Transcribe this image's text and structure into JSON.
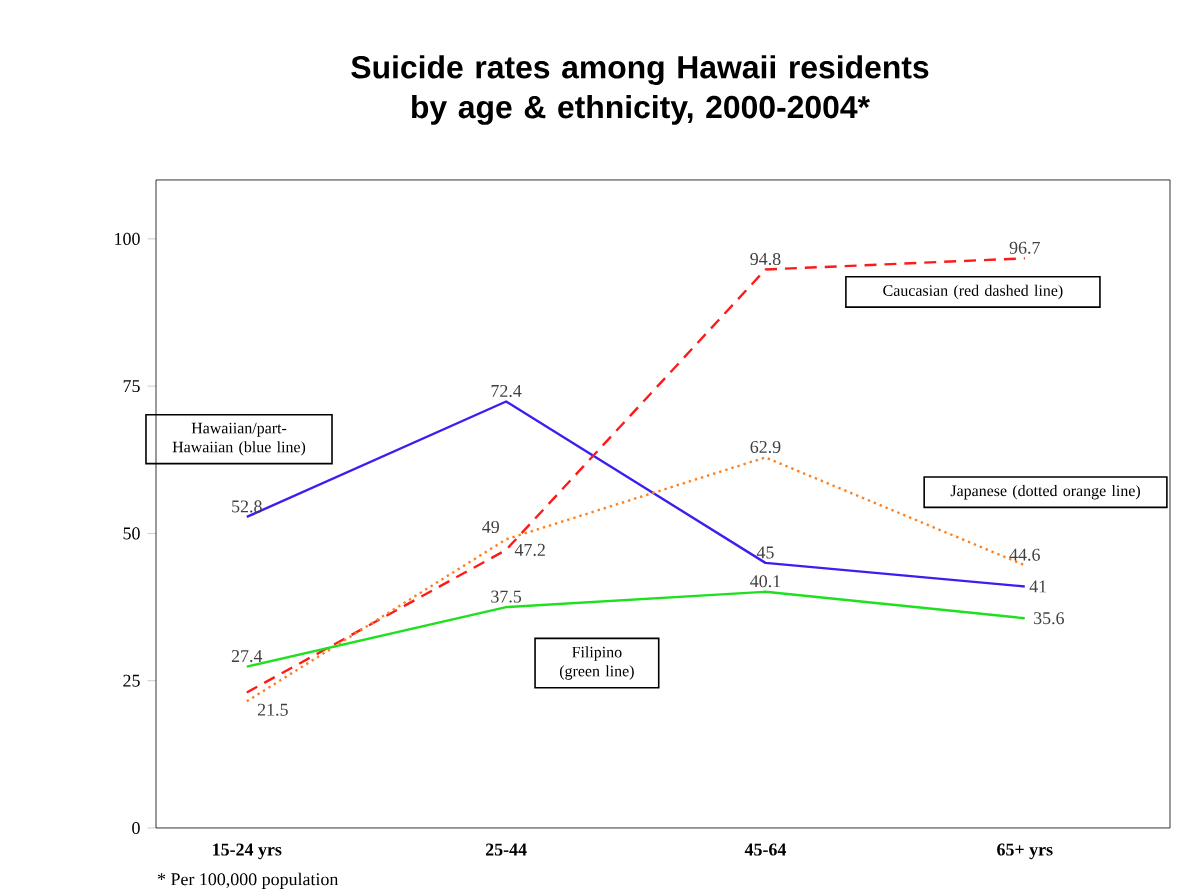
{
  "chart_data": {
    "type": "line",
    "title": "Suicide rates among Hawaii residents by age & ethnicity, 2000-2004*",
    "categories": [
      "15-24 yrs",
      "25-44",
      "45-64",
      "65+ yrs"
    ],
    "ylim": [
      0,
      110
    ],
    "yticks": [
      0,
      25,
      50,
      75,
      100
    ],
    "series": [
      {
        "name": "Hawaiian/part-Hawaiian (blue line)",
        "color": "#3a1ff0",
        "line_style": "solid",
        "values": [
          52.8,
          72.4,
          45,
          41
        ],
        "value_labels": [
          "52.8",
          "72.4",
          "45",
          "41"
        ]
      },
      {
        "name": "Caucasian (red dashed line)",
        "color": "#ff1a1a",
        "line_style": "dashed",
        "values": [
          23,
          47.2,
          94.8,
          96.7
        ],
        "value_labels": [
          null,
          "47.2",
          "94.8",
          "96.7"
        ]
      },
      {
        "name": "Japanese (dotted orange line)",
        "color": "#ff7f1a",
        "line_style": "dotted",
        "values": [
          21.5,
          49,
          62.9,
          44.6
        ],
        "value_labels": [
          "21.5",
          "49",
          "62.9",
          "44.6"
        ]
      },
      {
        "name": "Filipino (green line)",
        "color": "#1ee01e",
        "line_style": "solid",
        "values": [
          27.4,
          37.5,
          40.1,
          35.6
        ],
        "value_labels": [
          "27.4",
          "37.5",
          "40.1",
          "35.6"
        ]
      }
    ],
    "annotations": [
      "* Per 100,000 population"
    ]
  }
}
